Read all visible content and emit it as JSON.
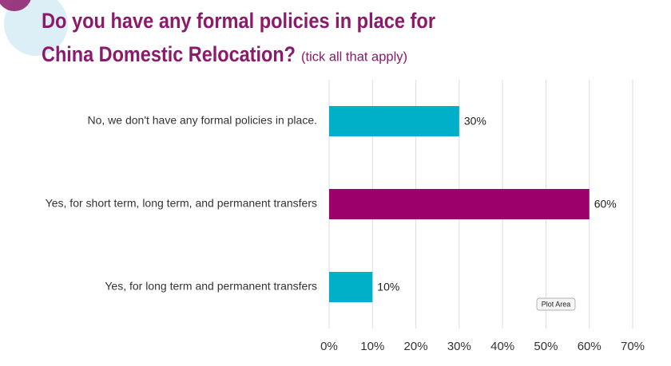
{
  "chart_data": {
    "type": "hbar",
    "title": [
      "Do you have any formal policies in place for",
      "China Domestic Relocation?"
    ],
    "subtitle": "(tick all that apply)",
    "categories": [
      "No, we don't have any formal policies in place.",
      "Yes, for short term, long term, and permanent transfers",
      "Yes, for long term and permanent transfers"
    ],
    "values": [
      30,
      60,
      10
    ],
    "value_labels": [
      "30%",
      "60%",
      "10%"
    ],
    "colors": [
      "#00b0c8",
      "#9b006b",
      "#00b0c8"
    ],
    "xlim": [
      0,
      70
    ],
    "xticks": [
      {
        "value": 0,
        "label": "0%"
      },
      {
        "value": 10,
        "label": "10%"
      },
      {
        "value": 20,
        "label": "20%"
      },
      {
        "value": 30,
        "label": "30%"
      },
      {
        "value": 40,
        "label": "40%"
      },
      {
        "value": 50,
        "label": "50%"
      },
      {
        "value": 60,
        "label": "60%"
      },
      {
        "value": 70,
        "label": "70%"
      }
    ],
    "grid": true,
    "annotations": [
      "Plot Area"
    ]
  }
}
